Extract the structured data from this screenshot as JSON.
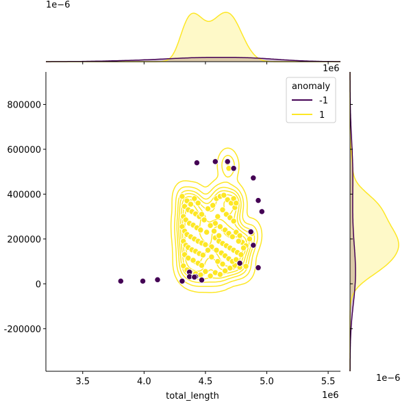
{
  "chart_data": {
    "type": "scatter",
    "title": "",
    "xlabel": "total_length",
    "ylabel": "",
    "x_offset_label": "1e6",
    "xlim": [
      3.2,
      5.6
    ],
    "ylim": [
      -390000,
      945000
    ],
    "x_ticks": [
      3.5,
      4.0,
      4.5,
      5.0,
      5.5
    ],
    "x_tick_labels": [
      "3.5",
      "4.0",
      "4.5",
      "5.0",
      "5.5"
    ],
    "y_ticks": [
      -200000,
      0,
      200000,
      400000,
      600000,
      800000
    ],
    "y_tick_labels": [
      "-200000",
      "0",
      "200000",
      "400000",
      "600000",
      "800000"
    ],
    "top_marginal_offset_label": "1e−6",
    "right_marginal_offset_label": "1e6",
    "right_marginal_x_offset_label": "1e−6",
    "grid": false,
    "legend": {
      "title": "anomaly",
      "placement": "top-right",
      "entries": [
        {
          "label": "-1",
          "color": "#440154"
        },
        {
          "label": "1",
          "color": "#fde725"
        }
      ]
    },
    "series": [
      {
        "name": "-1",
        "color": "#440154",
        "points": [
          [
            3.81,
            12000
          ],
          [
            3.99,
            12000
          ],
          [
            4.11,
            18000
          ],
          [
            4.31,
            12000
          ],
          [
            4.43,
            540000
          ],
          [
            4.58,
            545000
          ],
          [
            4.68,
            545000
          ],
          [
            4.73,
            515000
          ],
          [
            4.89,
            472000
          ],
          [
            4.93,
            372000
          ],
          [
            4.96,
            322000
          ],
          [
            4.87,
            232000
          ],
          [
            4.89,
            172000
          ],
          [
            4.78,
            92000
          ],
          [
            4.93,
            72000
          ],
          [
            4.47,
            17000
          ],
          [
            4.37,
            52000
          ],
          [
            4.37,
            32000
          ],
          [
            4.42,
            32000
          ],
          [
            4.41,
            30000
          ]
        ]
      },
      {
        "name": "1",
        "color": "#fde725",
        "points": [
          [
            4.31,
            390000
          ],
          [
            4.35,
            370000
          ],
          [
            4.38,
            355000
          ],
          [
            4.41,
            380000
          ],
          [
            4.44,
            360000
          ],
          [
            4.33,
            345000
          ],
          [
            4.36,
            330000
          ],
          [
            4.39,
            322000
          ],
          [
            4.42,
            312000
          ],
          [
            4.45,
            300000
          ],
          [
            4.32,
            300000
          ],
          [
            4.34,
            285000
          ],
          [
            4.37,
            270000
          ],
          [
            4.4,
            262000
          ],
          [
            4.43,
            250000
          ],
          [
            4.46,
            240000
          ],
          [
            4.31,
            255000
          ],
          [
            4.33,
            235000
          ],
          [
            4.35,
            220000
          ],
          [
            4.38,
            210000
          ],
          [
            4.41,
            200000
          ],
          [
            4.44,
            190000
          ],
          [
            4.47,
            182000
          ],
          [
            4.5,
            175000
          ],
          [
            4.32,
            190000
          ],
          [
            4.34,
            172000
          ],
          [
            4.36,
            162000
          ],
          [
            4.39,
            152000
          ],
          [
            4.42,
            145000
          ],
          [
            4.45,
            135000
          ],
          [
            4.48,
            128000
          ],
          [
            4.33,
            130000
          ],
          [
            4.36,
            115000
          ],
          [
            4.4,
            105000
          ],
          [
            4.44,
            92000
          ],
          [
            4.47,
            82000
          ],
          [
            4.32,
            80000
          ],
          [
            4.35,
            62000
          ],
          [
            4.38,
            52000
          ],
          [
            4.42,
            45000
          ],
          [
            4.46,
            40000
          ],
          [
            4.5,
            55000
          ],
          [
            4.54,
            35000
          ],
          [
            4.58,
            50000
          ],
          [
            4.62,
            42000
          ],
          [
            4.66,
            58000
          ],
          [
            4.7,
            70000
          ],
          [
            4.74,
            82000
          ],
          [
            4.78,
            74000
          ],
          [
            4.83,
            78000
          ],
          [
            4.52,
            335000
          ],
          [
            4.56,
            350000
          ],
          [
            4.59,
            380000
          ],
          [
            4.62,
            390000
          ],
          [
            4.65,
            395000
          ],
          [
            4.68,
            375000
          ],
          [
            4.71,
            360000
          ],
          [
            4.74,
            340000
          ],
          [
            4.64,
            330000
          ],
          [
            4.67,
            310000
          ],
          [
            4.7,
            295000
          ],
          [
            4.73,
            280000
          ],
          [
            4.6,
            300000
          ],
          [
            4.58,
            270000
          ],
          [
            4.62,
            255000
          ],
          [
            4.66,
            240000
          ],
          [
            4.69,
            225000
          ],
          [
            4.72,
            210000
          ],
          [
            4.75,
            230000
          ],
          [
            4.78,
            215000
          ],
          [
            4.58,
            205000
          ],
          [
            4.61,
            190000
          ],
          [
            4.64,
            180000
          ],
          [
            4.67,
            170000
          ],
          [
            4.7,
            160000
          ],
          [
            4.73,
            150000
          ],
          [
            4.76,
            140000
          ],
          [
            4.79,
            130000
          ],
          [
            4.55,
            165000
          ],
          [
            4.59,
            150000
          ],
          [
            4.63,
            138000
          ],
          [
            4.66,
            125000
          ],
          [
            4.69,
            112000
          ],
          [
            4.72,
            100000
          ],
          [
            4.75,
            108000
          ],
          [
            4.8,
            185000
          ],
          [
            4.83,
            170000
          ],
          [
            4.86,
            200000
          ],
          [
            4.88,
            225000
          ],
          [
            4.55,
            120000
          ],
          [
            4.6,
            100000
          ],
          [
            4.64,
            88000
          ],
          [
            4.68,
            540000
          ],
          [
            4.69,
            515000
          ],
          [
            4.73,
            380000
          ],
          [
            4.75,
            360000
          ],
          [
            4.77,
            190000
          ],
          [
            4.81,
            160000
          ],
          [
            4.51,
            230000
          ],
          [
            4.54,
            260000
          ],
          [
            4.49,
            285000
          ],
          [
            4.47,
            310000
          ],
          [
            4.52,
            150000
          ],
          [
            4.57,
            235000
          ],
          [
            4.61,
            215000
          ]
        ]
      }
    ]
  }
}
